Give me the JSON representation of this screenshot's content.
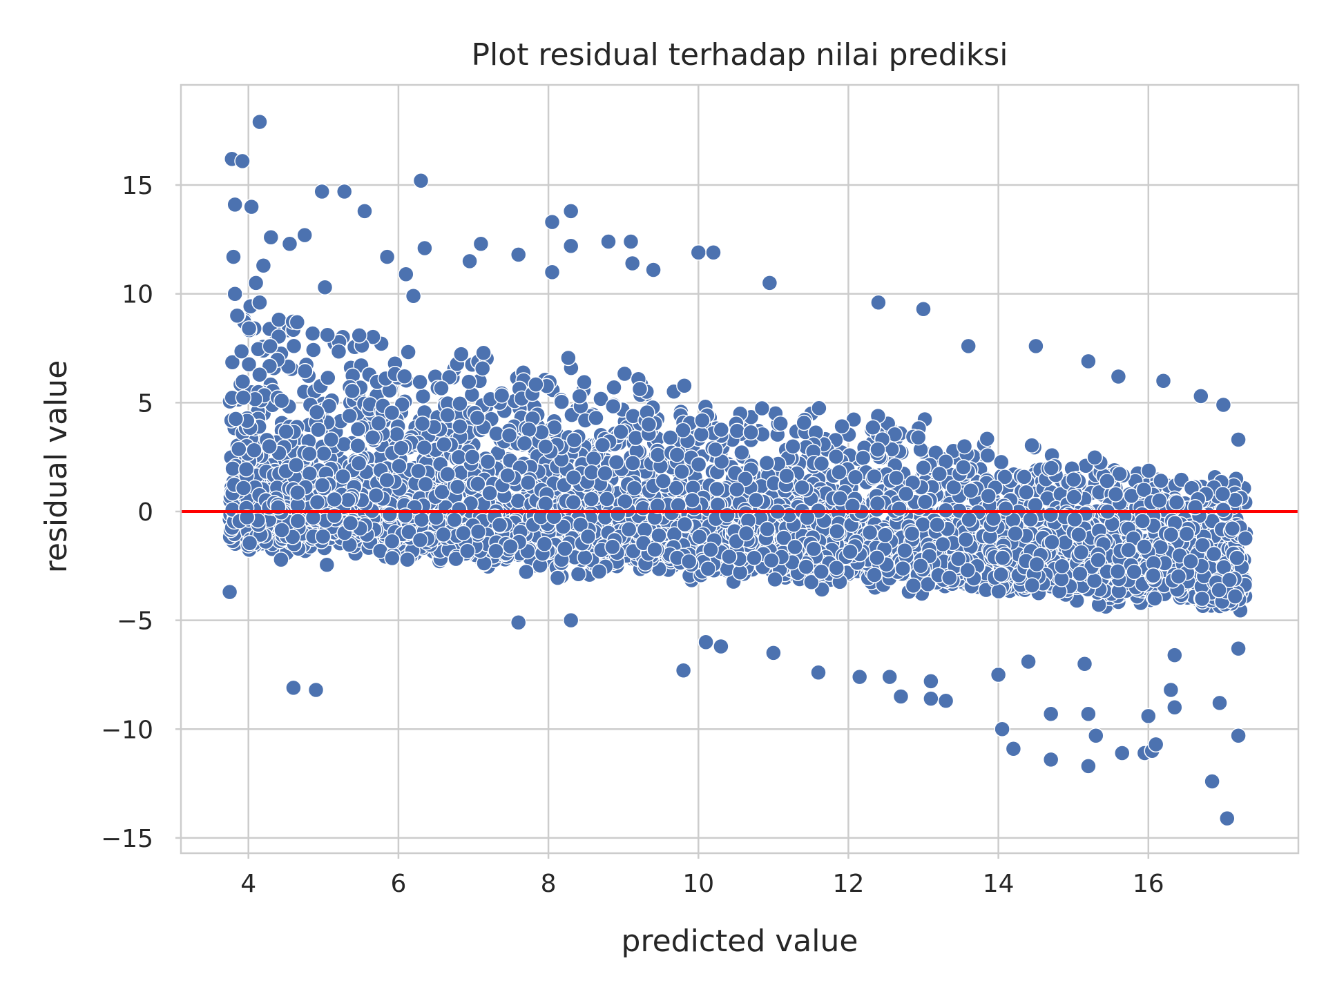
{
  "chart_data": {
    "type": "scatter",
    "title": "Plot residual terhadap nilai prediksi",
    "xlabel": "predicted value",
    "ylabel": "residual value",
    "xlim": [
      3.1,
      18.0
    ],
    "ylim": [
      -15.7,
      19.6
    ],
    "xticks": [
      4,
      6,
      8,
      10,
      12,
      14,
      16
    ],
    "yticks": [
      -15,
      -10,
      -5,
      0,
      5,
      10,
      15
    ],
    "xtick_labels": [
      "4",
      "6",
      "8",
      "10",
      "12",
      "14",
      "16"
    ],
    "ytick_labels": [
      "−15",
      "−10",
      "−5",
      "0",
      "5",
      "10",
      "15"
    ],
    "grid": true,
    "point_color": "#4c72b0",
    "reference_line": {
      "y": 0,
      "color": "#ff0000"
    },
    "outliers": [
      [
        4.15,
        17.9
      ],
      [
        3.78,
        16.2
      ],
      [
        3.92,
        16.1
      ],
      [
        6.3,
        15.2
      ],
      [
        4.98,
        14.7
      ],
      [
        5.28,
        14.7
      ],
      [
        3.82,
        14.1
      ],
      [
        4.04,
        14.0
      ],
      [
        5.55,
        13.8
      ],
      [
        8.3,
        13.8
      ],
      [
        8.05,
        13.3
      ],
      [
        4.75,
        12.7
      ],
      [
        4.3,
        12.6
      ],
      [
        4.55,
        12.3
      ],
      [
        7.1,
        12.3
      ],
      [
        8.8,
        12.4
      ],
      [
        9.1,
        12.4
      ],
      [
        6.35,
        12.1
      ],
      [
        8.3,
        12.2
      ],
      [
        10.0,
        11.9
      ],
      [
        10.2,
        11.9
      ],
      [
        7.6,
        11.8
      ],
      [
        3.8,
        11.7
      ],
      [
        5.85,
        11.7
      ],
      [
        4.2,
        11.3
      ],
      [
        6.95,
        11.5
      ],
      [
        9.12,
        11.4
      ],
      [
        9.4,
        11.1
      ],
      [
        8.05,
        11.0
      ],
      [
        6.1,
        10.9
      ],
      [
        4.1,
        10.5
      ],
      [
        5.02,
        10.3
      ],
      [
        10.95,
        10.5
      ],
      [
        3.82,
        10.0
      ],
      [
        6.2,
        9.9
      ],
      [
        4.15,
        9.6
      ],
      [
        3.85,
        9.0
      ],
      [
        4.65,
        8.7
      ],
      [
        13.0,
        9.3
      ],
      [
        12.4,
        9.6
      ],
      [
        13.6,
        7.6
      ],
      [
        14.5,
        7.6
      ],
      [
        15.2,
        6.9
      ],
      [
        15.6,
        6.2
      ],
      [
        16.2,
        6.0
      ],
      [
        16.7,
        5.3
      ],
      [
        17.0,
        4.9
      ],
      [
        17.2,
        3.3
      ],
      [
        3.75,
        -3.7
      ],
      [
        4.6,
        -8.1
      ],
      [
        4.9,
        -8.2
      ],
      [
        7.6,
        -5.1
      ],
      [
        8.3,
        -5.0
      ],
      [
        9.8,
        -7.3
      ],
      [
        10.1,
        -6.0
      ],
      [
        10.3,
        -6.2
      ],
      [
        11.0,
        -6.5
      ],
      [
        11.6,
        -7.4
      ],
      [
        12.15,
        -7.6
      ],
      [
        12.55,
        -7.6
      ],
      [
        12.7,
        -8.5
      ],
      [
        13.1,
        -7.8
      ],
      [
        13.1,
        -8.6
      ],
      [
        13.3,
        -8.7
      ],
      [
        14.0,
        -7.5
      ],
      [
        14.05,
        -10.0
      ],
      [
        14.2,
        -10.9
      ],
      [
        14.4,
        -6.9
      ],
      [
        14.7,
        -9.3
      ],
      [
        14.7,
        -11.4
      ],
      [
        15.15,
        -7.0
      ],
      [
        15.2,
        -9.3
      ],
      [
        15.2,
        -11.7
      ],
      [
        15.3,
        -10.3
      ],
      [
        15.65,
        -11.1
      ],
      [
        15.95,
        -11.1
      ],
      [
        16.0,
        -9.4
      ],
      [
        16.05,
        -11.0
      ],
      [
        16.1,
        -10.7
      ],
      [
        16.3,
        -8.2
      ],
      [
        16.35,
        -9.0
      ],
      [
        16.35,
        -6.6
      ],
      [
        16.85,
        -12.4
      ],
      [
        16.95,
        -8.8
      ],
      [
        17.05,
        -14.1
      ],
      [
        17.2,
        -10.3
      ],
      [
        17.2,
        -6.3
      ]
    ]
  }
}
